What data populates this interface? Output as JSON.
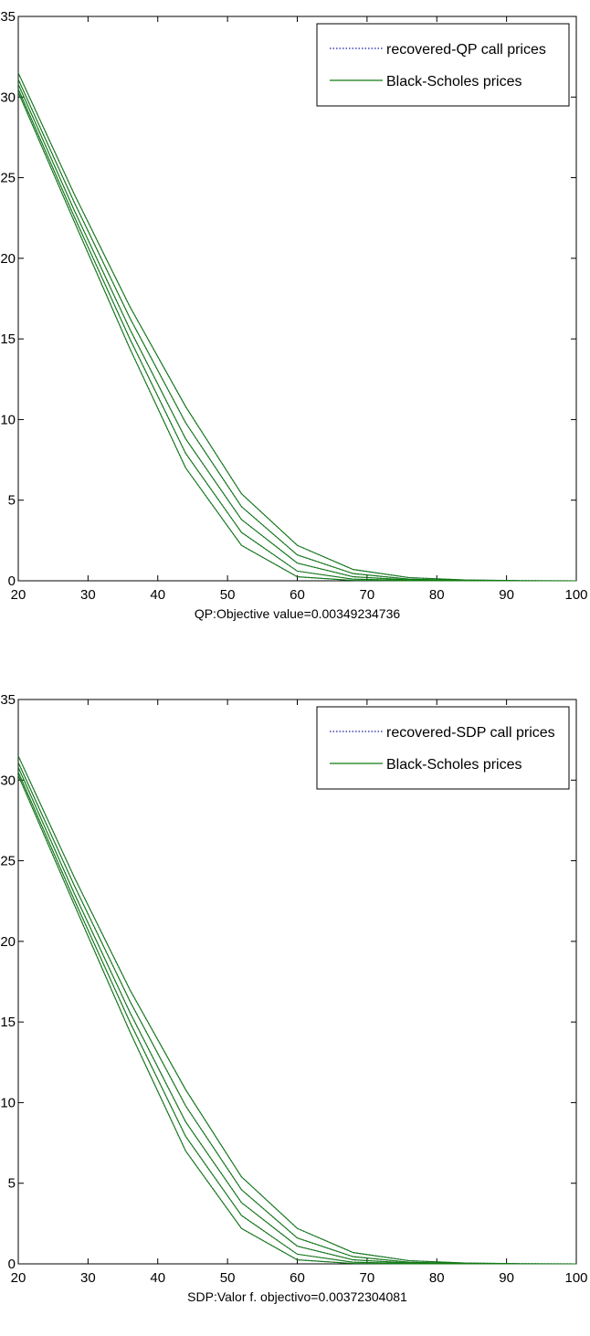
{
  "colors": {
    "background": "#ffffff",
    "axes": "#000000",
    "recovered_series": "#1a1aa8",
    "black_scholes_series": "#127a12"
  },
  "chart_data": [
    {
      "type": "line",
      "xlabel": "QP:Objective value=0.00349234736",
      "ylabel": "",
      "xlim": [
        20,
        100
      ],
      "ylim": [
        0,
        35
      ],
      "xticks": [
        20,
        30,
        40,
        50,
        60,
        70,
        80,
        90,
        100
      ],
      "yticks": [
        0,
        5,
        10,
        15,
        20,
        25,
        30,
        35
      ],
      "legend_position": "top-right",
      "legend": [
        {
          "label": "recovered-QP call prices",
          "style": "dotted",
          "color": "#1a1aa8"
        },
        {
          "label": "Black-Scholes prices",
          "style": "solid",
          "color": "#127a12"
        }
      ],
      "x": [
        20,
        28,
        36,
        44,
        52,
        60,
        68,
        76,
        84,
        92,
        100
      ],
      "series": [
        {
          "style": "dotted",
          "color": "#1a1aa8",
          "values": [
            30.3,
            22.3,
            14.4,
            7.0,
            2.2,
            0.25,
            0.02,
            0.0,
            0.0,
            0.0,
            0.0
          ]
        },
        {
          "style": "dotted",
          "color": "#1a1aa8",
          "values": [
            30.5,
            22.6,
            15.0,
            7.9,
            3.0,
            0.6,
            0.1,
            0.02,
            0.0,
            0.0,
            0.0
          ]
        },
        {
          "style": "dotted",
          "color": "#1a1aa8",
          "values": [
            30.8,
            23.0,
            15.6,
            8.8,
            3.8,
            1.1,
            0.25,
            0.05,
            0.01,
            0.0,
            0.0
          ]
        },
        {
          "style": "dotted",
          "color": "#1a1aa8",
          "values": [
            31.1,
            23.5,
            16.3,
            9.8,
            4.6,
            1.6,
            0.45,
            0.1,
            0.02,
            0.0,
            0.0
          ]
        },
        {
          "style": "dotted",
          "color": "#1a1aa8",
          "values": [
            31.5,
            24.0,
            17.0,
            10.8,
            5.4,
            2.2,
            0.7,
            0.2,
            0.05,
            0.01,
            0.0
          ]
        },
        {
          "style": "solid",
          "color": "#127a12",
          "values": [
            30.3,
            22.3,
            14.4,
            7.0,
            2.2,
            0.25,
            0.02,
            0.0,
            0.0,
            0.0,
            0.0
          ]
        },
        {
          "style": "solid",
          "color": "#127a12",
          "values": [
            30.5,
            22.6,
            15.0,
            7.9,
            3.0,
            0.6,
            0.1,
            0.02,
            0.0,
            0.0,
            0.0
          ]
        },
        {
          "style": "solid",
          "color": "#127a12",
          "values": [
            30.8,
            23.0,
            15.6,
            8.8,
            3.8,
            1.1,
            0.25,
            0.05,
            0.01,
            0.0,
            0.0
          ]
        },
        {
          "style": "solid",
          "color": "#127a12",
          "values": [
            31.1,
            23.5,
            16.3,
            9.8,
            4.6,
            1.6,
            0.45,
            0.1,
            0.02,
            0.0,
            0.0
          ]
        },
        {
          "style": "solid",
          "color": "#127a12",
          "values": [
            31.5,
            24.0,
            17.0,
            10.8,
            5.4,
            2.2,
            0.7,
            0.2,
            0.05,
            0.01,
            0.0
          ]
        }
      ]
    },
    {
      "type": "line",
      "xlabel": "SDP:Valor f. objectivo=0.00372304081",
      "ylabel": "",
      "xlim": [
        20,
        100
      ],
      "ylim": [
        0,
        35
      ],
      "xticks": [
        20,
        30,
        40,
        50,
        60,
        70,
        80,
        90,
        100
      ],
      "yticks": [
        0,
        5,
        10,
        15,
        20,
        25,
        30,
        35
      ],
      "legend_position": "top-right",
      "legend": [
        {
          "label": "recovered-SDP call prices",
          "style": "dotted",
          "color": "#1a1aa8"
        },
        {
          "label": "Black-Scholes prices",
          "style": "solid",
          "color": "#127a12"
        }
      ],
      "x": [
        20,
        28,
        36,
        44,
        52,
        60,
        68,
        76,
        84,
        92,
        100
      ],
      "series": [
        {
          "style": "dotted",
          "color": "#1a1aa8",
          "values": [
            30.3,
            22.3,
            14.4,
            7.0,
            2.2,
            0.25,
            0.02,
            0.0,
            0.0,
            0.0,
            0.0
          ]
        },
        {
          "style": "dotted",
          "color": "#1a1aa8",
          "values": [
            30.5,
            22.6,
            15.0,
            7.9,
            3.0,
            0.6,
            0.1,
            0.02,
            0.0,
            0.0,
            0.0
          ]
        },
        {
          "style": "dotted",
          "color": "#1a1aa8",
          "values": [
            30.8,
            23.0,
            15.6,
            8.8,
            3.8,
            1.1,
            0.25,
            0.05,
            0.01,
            0.0,
            0.0
          ]
        },
        {
          "style": "dotted",
          "color": "#1a1aa8",
          "values": [
            31.1,
            23.5,
            16.3,
            9.8,
            4.6,
            1.6,
            0.45,
            0.1,
            0.02,
            0.0,
            0.0
          ]
        },
        {
          "style": "dotted",
          "color": "#1a1aa8",
          "values": [
            31.5,
            24.0,
            17.0,
            10.8,
            5.4,
            2.2,
            0.7,
            0.2,
            0.05,
            0.01,
            0.0
          ]
        },
        {
          "style": "solid",
          "color": "#127a12",
          "values": [
            30.3,
            22.3,
            14.4,
            7.0,
            2.2,
            0.25,
            0.02,
            0.0,
            0.0,
            0.0,
            0.0
          ]
        },
        {
          "style": "solid",
          "color": "#127a12",
          "values": [
            30.5,
            22.6,
            15.0,
            7.9,
            3.0,
            0.6,
            0.1,
            0.02,
            0.0,
            0.0,
            0.0
          ]
        },
        {
          "style": "solid",
          "color": "#127a12",
          "values": [
            30.8,
            23.0,
            15.6,
            8.8,
            3.8,
            1.1,
            0.25,
            0.05,
            0.01,
            0.0,
            0.0
          ]
        },
        {
          "style": "solid",
          "color": "#127a12",
          "values": [
            31.1,
            23.5,
            16.3,
            9.8,
            4.6,
            1.6,
            0.45,
            0.1,
            0.02,
            0.0,
            0.0
          ]
        },
        {
          "style": "solid",
          "color": "#127a12",
          "values": [
            31.5,
            24.0,
            17.0,
            10.8,
            5.4,
            2.2,
            0.7,
            0.2,
            0.05,
            0.01,
            0.0
          ]
        }
      ]
    }
  ]
}
